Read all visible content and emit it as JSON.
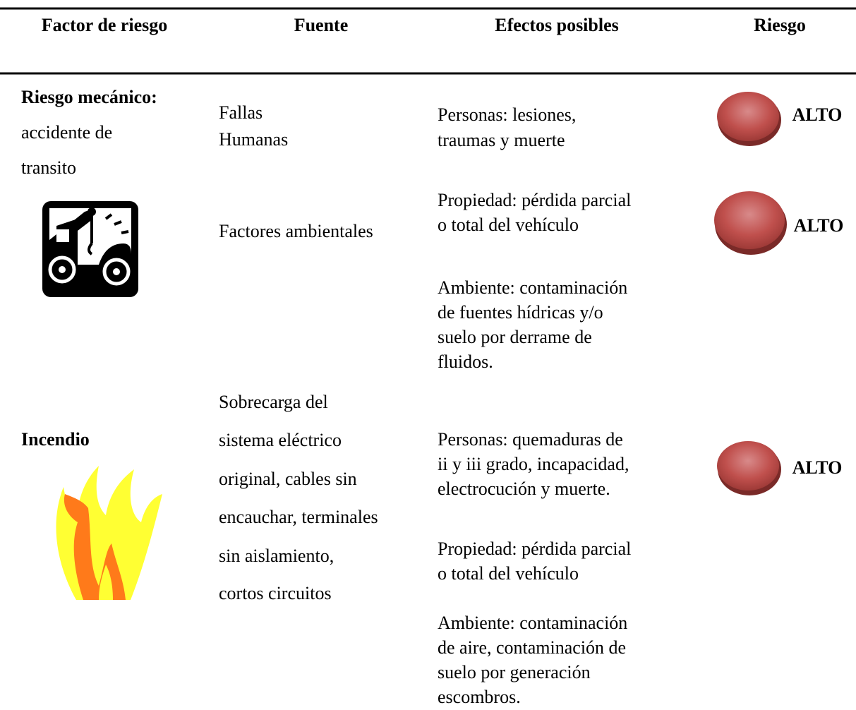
{
  "header": [
    "Factor de riesgo",
    "Fuente",
    "Efectos posibles",
    "Riesgo"
  ],
  "rows": [
    {
      "factor_title": "Riesgo mecánico:",
      "factor_lines": [
        "accidente de",
        "transito"
      ],
      "sources": [
        [
          "Fallas",
          "Humanas"
        ],
        [
          "Factores ambientales"
        ]
      ],
      "effects": [
        [
          "Personas: lesiones,",
          "traumas y muerte"
        ],
        [
          "Propiedad: pérdida parcial",
          "o total del vehículo"
        ],
        [
          "Ambiente: contaminación",
          "de fuentes hídricas y/o",
          "suelo por derrame de",
          "fluidos."
        ]
      ],
      "risks": [
        "ALTO",
        "ALTO"
      ]
    },
    {
      "factor_title": "Incendio",
      "factor_lines": [],
      "sources": [
        [
          "Sobrecarga del",
          "sistema eléctrico",
          "original, cables sin",
          "encauchar, terminales",
          "sin aislamiento,",
          "cortos circuitos"
        ]
      ],
      "effects": [
        [
          "Personas: quemaduras de",
          "ii y iii grado, incapacidad,",
          "electrocución y muerte."
        ],
        [
          "Propiedad: pérdida parcial",
          "o total del vehículo"
        ],
        [
          "Ambiente: contaminación",
          "de aire, contaminación de",
          "suelo por generación",
          "escombros."
        ]
      ],
      "risks": [
        "ALTO"
      ]
    }
  ]
}
